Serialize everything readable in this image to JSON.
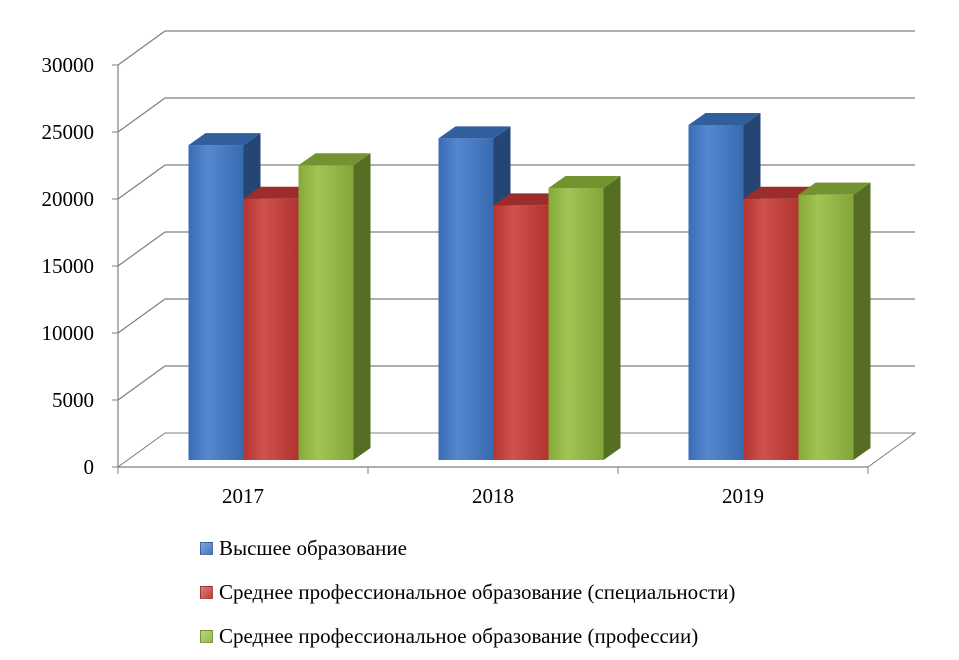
{
  "chart_data": {
    "type": "bar",
    "categories": [
      "2017",
      "2018",
      "2019"
    ],
    "series": [
      {
        "name": "Высшее образование",
        "color": "#3F78C8",
        "values": [
          23500,
          24000,
          25000
        ]
      },
      {
        "name": "Среднее профессиональное образование (специальности)",
        "color": "#C83A36",
        "values": [
          19500,
          19000,
          19500
        ]
      },
      {
        "name": "Среднее профессиональное образование (профессии)",
        "color": "#94BD3E",
        "values": [
          22000,
          20300,
          19800
        ]
      }
    ],
    "yticks": [
      "0",
      "5000",
      "10000",
      "15000",
      "20000",
      "25000",
      "30000"
    ],
    "ylim": [
      0,
      30000
    ],
    "grid": true,
    "legend": "bottom",
    "style": "3d-clustered-column"
  }
}
